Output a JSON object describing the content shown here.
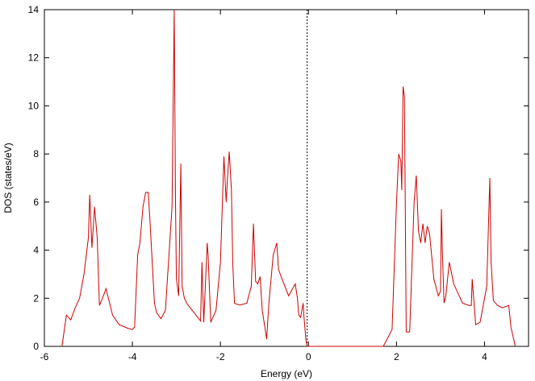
{
  "chart_data": {
    "type": "line",
    "title": "",
    "xlabel": "Energy (eV)",
    "ylabel": "DOS (states/eV)",
    "xlim": [
      -6,
      5
    ],
    "ylim": [
      0,
      14
    ],
    "xticks": [
      -6,
      -4,
      -2,
      0,
      2,
      4
    ],
    "yticks": [
      0,
      2,
      4,
      6,
      8,
      10,
      12,
      14
    ],
    "grid": false,
    "legend": "none",
    "fermi_level": -0.03,
    "series": [
      {
        "color": "#cc0000",
        "x": [
          -5.6,
          -5.5,
          -5.4,
          -5.3,
          -5.2,
          -5.1,
          -5.0,
          -4.97,
          -4.92,
          -4.86,
          -4.8,
          -4.75,
          -4.68,
          -4.6,
          -4.45,
          -4.3,
          -4.1,
          -4.0,
          -3.95,
          -3.88,
          -3.83,
          -3.76,
          -3.7,
          -3.64,
          -3.6,
          -3.5,
          -3.45,
          -3.35,
          -3.25,
          -3.1,
          -3.05,
          -3.02,
          -3.0,
          -2.95,
          -2.9,
          -2.87,
          -2.82,
          -2.75,
          -2.6,
          -2.45,
          -2.42,
          -2.38,
          -2.3,
          -2.28,
          -2.22,
          -2.1,
          -2.0,
          -1.92,
          -1.87,
          -1.84,
          -1.8,
          -1.75,
          -1.72,
          -1.68,
          -1.62,
          -1.55,
          -1.4,
          -1.3,
          -1.25,
          -1.2,
          -1.15,
          -1.1,
          -1.05,
          -0.95,
          -0.9,
          -0.8,
          -0.72,
          -0.68,
          -0.6,
          -0.45,
          -0.3,
          -0.25,
          -0.22,
          -0.18,
          -0.12,
          -0.1,
          -0.06,
          -0.03,
          1.7,
          1.9,
          2.0,
          2.05,
          2.1,
          2.12,
          2.15,
          2.18,
          2.22,
          2.3,
          2.4,
          2.45,
          2.5,
          2.55,
          2.6,
          2.65,
          2.7,
          2.75,
          2.85,
          2.95,
          3.0,
          3.02,
          3.05,
          3.08,
          3.12,
          3.2,
          3.3,
          3.5,
          3.65,
          3.7,
          3.72,
          3.8,
          3.9,
          4.05,
          4.12,
          4.15,
          4.2,
          4.3,
          4.4,
          4.55,
          4.6,
          4.7
        ],
        "y": [
          0.0,
          1.3,
          1.1,
          1.6,
          2.0,
          3.0,
          4.5,
          6.3,
          4.1,
          5.8,
          4.5,
          1.7,
          2.0,
          2.4,
          1.3,
          0.9,
          0.75,
          0.7,
          0.8,
          3.8,
          4.3,
          5.8,
          6.4,
          6.4,
          5.2,
          1.8,
          1.4,
          1.15,
          1.5,
          5.8,
          14.0,
          6.0,
          2.8,
          2.1,
          7.6,
          2.5,
          2.0,
          1.75,
          1.4,
          1.05,
          3.5,
          1.0,
          4.3,
          3.8,
          1.0,
          1.5,
          3.5,
          7.9,
          6.0,
          7.0,
          8.1,
          6.5,
          3.4,
          1.8,
          1.75,
          1.72,
          1.8,
          2.5,
          5.1,
          2.7,
          2.6,
          2.9,
          1.5,
          0.3,
          1.8,
          3.8,
          4.3,
          3.2,
          2.8,
          2.1,
          2.6,
          2.0,
          1.3,
          1.2,
          1.8,
          1.2,
          0.3,
          0.0,
          0.0,
          0.7,
          6.0,
          8.0,
          7.7,
          6.5,
          10.8,
          10.4,
          0.6,
          0.6,
          6.0,
          7.1,
          4.8,
          4.3,
          5.1,
          4.3,
          5.0,
          4.7,
          2.8,
          2.1,
          2.3,
          5.7,
          3.5,
          1.8,
          2.1,
          3.5,
          2.6,
          1.8,
          1.7,
          1.7,
          2.8,
          0.9,
          1.0,
          2.5,
          7.0,
          3.5,
          1.9,
          1.7,
          1.6,
          1.7,
          0.8,
          0.0
        ]
      }
    ]
  }
}
